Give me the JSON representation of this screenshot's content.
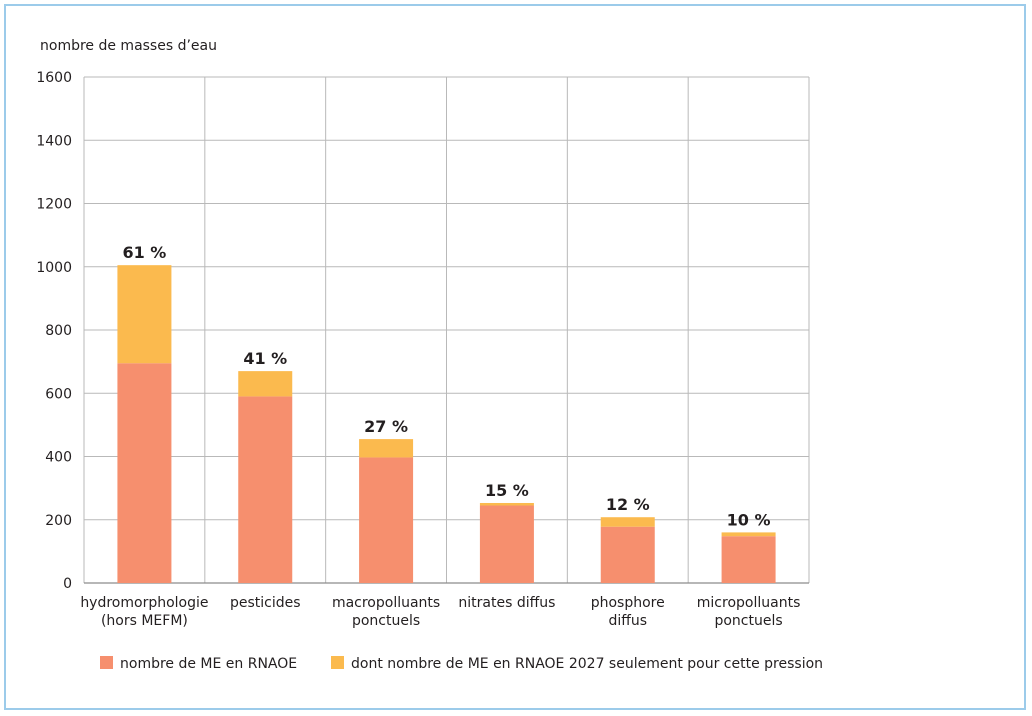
{
  "chart_data": {
    "type": "bar",
    "stacked": true,
    "ylabel": "nombre de masses d’eau",
    "ylim": [
      0,
      1600
    ],
    "yticks": [
      0,
      200,
      400,
      600,
      800,
      1000,
      1200,
      1400,
      1600
    ],
    "grid": true,
    "categories": [
      [
        "hydromorphologie",
        "(hors MEFM)"
      ],
      [
        "pesticides"
      ],
      [
        "macropolluants",
        "ponctuels"
      ],
      [
        "nitrates diffus"
      ],
      [
        "phosphore",
        "diffus"
      ],
      [
        "micropolluants",
        "ponctuels"
      ]
    ],
    "series": [
      {
        "name": "nombre de ME en RNAOE",
        "color": "#f68f6e",
        "values": [
          695,
          590,
          397,
          245,
          178,
          148
        ]
      },
      {
        "name": "dont nombre de ME en RNAOE 2027 seulement pour cette pression",
        "color": "#fbba4e",
        "values": [
          310,
          80,
          58,
          8,
          30,
          12
        ]
      }
    ],
    "annotations": [
      "61 %",
      "41 %",
      "27 %",
      "15 %",
      "12 %",
      "10 %"
    ],
    "legend_position": "bottom"
  }
}
